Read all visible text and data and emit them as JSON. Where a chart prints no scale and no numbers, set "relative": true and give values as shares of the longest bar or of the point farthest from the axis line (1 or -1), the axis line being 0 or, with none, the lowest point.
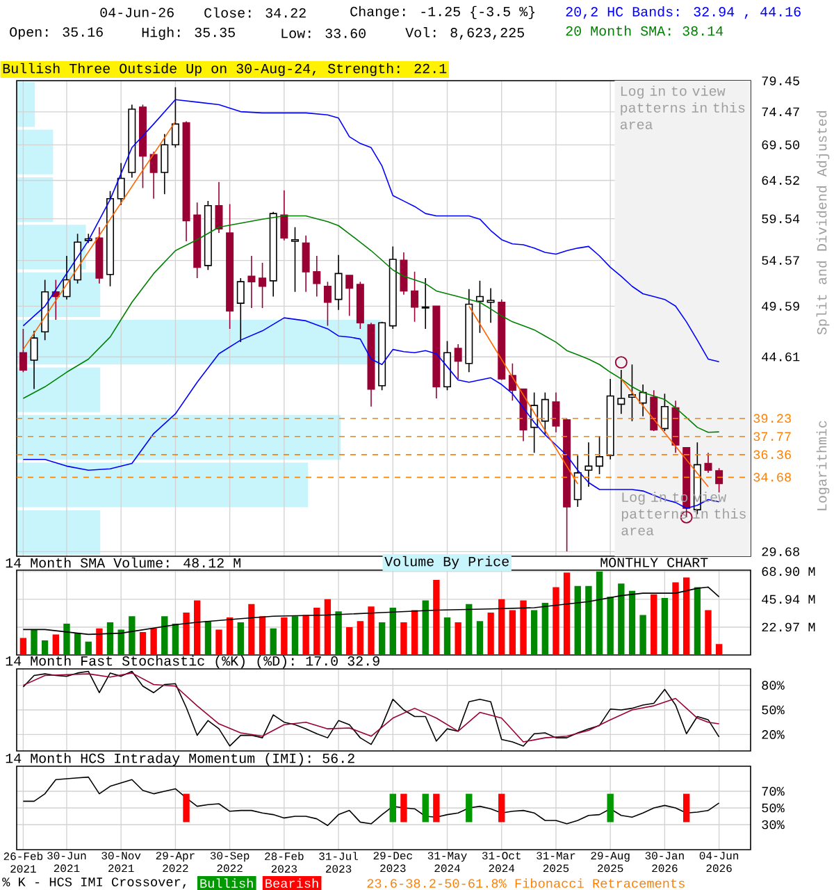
{
  "chart_data": [
    {
      "type": "candlestick",
      "title": "Bullish Three Outside Up on 30-Aug-24, Strength: 22.1",
      "ylabel": "Split and Dividend Adjusted",
      "log": true,
      "grid": true,
      "tick_labels": "y",
      "legend": "top right",
      "xlim": [
        "2021-01-13",
        "2026-08-28"
      ],
      "ylim": [
        29.4,
        79.5
      ],
      "xticks": [
        {
          "value": "2021-02",
          "label": null
        },
        {
          "value": "2021-06",
          "label": null
        },
        {
          "value": "2021-11",
          "label": null
        },
        {
          "value": "2022-04",
          "label": null
        },
        {
          "value": "2022-09",
          "label": null
        },
        {
          "value": "2023-02",
          "label": null
        },
        {
          "value": "2023-07",
          "label": null
        },
        {
          "value": "2023-12",
          "label": null
        },
        {
          "value": "2024-05",
          "label": null
        },
        {
          "value": "2024-10",
          "label": null
        },
        {
          "value": "2025-03",
          "label": null
        },
        {
          "value": "2025-08",
          "label": null
        },
        {
          "value": "2026-01",
          "label": null
        },
        {
          "value": "2026-06",
          "label": null
        }
      ],
      "yticks": [
        29.68,
        44.61,
        49.59,
        54.57,
        59.54,
        64.52,
        {
          "value": 69.5,
          "label": "69.50"
        },
        74.47,
        79.45
      ],
      "bands": [
        {
          "axis": "x",
          "from": "2025-08-13",
          "to": "2026-08-28",
          "label": "Log in to view patterns in this area",
          "color": "#f2f2f2"
        }
      ],
      "ref_lines": [
        {
          "axis": "y",
          "value": 39.23,
          "label": "39.23",
          "color": "#ff8000",
          "line_style": "dashed"
        },
        {
          "axis": "y",
          "value": 37.77,
          "label": "37.77",
          "color": "#ff8000",
          "line_style": "dashed"
        },
        {
          "axis": "y",
          "value": 36.36,
          "label": "36.36",
          "color": "#ff8000",
          "line_style": "dashed"
        },
        {
          "axis": "y",
          "value": 34.68,
          "label": "34.68",
          "color": "#ff8000",
          "line_style": "dashed"
        }
      ],
      "annotations": [
        "04-Jun-26",
        "Close: 34.22",
        "Change: -1.25 {-3.5 %}",
        "Open: 35.16",
        "High: 35.35",
        "Low: 33.60",
        "Vol: 8,623,225",
        "Log in to view patterns in this area",
        "Logarithmic",
        "23.6-38.2-50-61.8% Fibonacci Retracements",
        "Volume By Price"
      ],
      "series": [
        {
          "color": "#000000",
          "x": [
            "2021-03",
            "2021-04",
            "2021-06",
            "2021-07",
            "2021-08",
            "2021-10",
            "2021-11",
            "2021-12",
            "2022-03",
            "2022-04",
            "2022-07",
            "2022-10",
            "2023-01",
            "2023-03",
            "2023-07",
            "2023-11",
            "2023-12",
            "2024-03",
            "2024-05",
            "2024-07",
            "2024-08",
            "2024-09",
            "2025-01",
            "2025-02",
            "2025-05",
            "2025-06",
            "2025-07",
            "2025-08",
            "2025-09",
            "2025-10",
            "2025-11",
            "2026-01",
            "2026-04"
          ],
          "ohlc": [
            [
              44.3,
              47.1,
              41.7,
              46.4
            ],
            [
              47.0,
              52.4,
              46.2,
              51.1
            ],
            [
              50.6,
              55.1,
              50.3,
              52.4
            ],
            [
              52.4,
              57.7,
              52.0,
              56.7
            ],
            [
              56.9,
              57.7,
              56.6,
              57.1
            ],
            [
              53.0,
              63.1,
              51.7,
              62.1
            ],
            [
              62.1,
              66.9,
              61.3,
              64.8
            ],
            [
              65.6,
              75.6,
              64.9,
              74.9
            ],
            [
              65.6,
              71.1,
              62.7,
              69.5
            ],
            [
              69.5,
              78.4,
              69.1,
              72.6
            ],
            [
              54.0,
              61.8,
              53.5,
              61.2
            ],
            [
              49.9,
              52.6,
              46.0,
              52.2
            ],
            [
              52.3,
              60.4,
              50.6,
              60.2
            ],
            [
              56.8,
              58.5,
              51.1,
              57.0
            ],
            [
              50.3,
              55.2,
              49.2,
              53.1
            ],
            [
              42.0,
              48.0,
              41.6,
              47.9
            ],
            [
              47.6,
              56.2,
              47.3,
              54.7
            ],
            [
              49.4,
              52.6,
              47.3,
              49.5
            ],
            [
              41.9,
              46.1,
              41.6,
              45.0
            ],
            [
              44.0,
              51.4,
              43.2,
              49.8
            ],
            [
              50.1,
              52.3,
              46.9,
              50.6
            ],
            [
              50.0,
              51.5,
              47.9,
              50.2
            ],
            [
              38.5,
              41.4,
              36.5,
              40.3
            ],
            [
              39.0,
              41.4,
              37.9,
              40.8
            ],
            [
              33.1,
              36.3,
              32.6,
              35.0
            ],
            [
              35.2,
              37.3,
              34.0,
              35.5
            ],
            [
              35.5,
              37.8,
              34.9,
              36.2
            ],
            [
              36.3,
              42.6,
              36.0,
              41.1
            ],
            [
              40.4,
              43.4,
              39.6,
              40.9
            ],
            [
              41.0,
              43.9,
              39.0,
              41.2
            ],
            [
              40.5,
              42.1,
              39.4,
              41.4
            ],
            [
              38.4,
              41.3,
              38.2,
              40.2
            ],
            [
              32.4,
              37.3,
              32.1,
              35.6
            ]
          ]
        },
        {
          "color": "#990033",
          "x": [
            "2021-02",
            "2021-05",
            "2021-09",
            "2022-01",
            "2022-02",
            "2022-05",
            "2022-06",
            "2022-08",
            "2022-09",
            "2022-11",
            "2022-12",
            "2023-02",
            "2023-04",
            "2023-05",
            "2023-06",
            "2023-08",
            "2023-09",
            "2023-10",
            "2024-01",
            "2024-02",
            "2024-04",
            "2024-06",
            "2024-10",
            "2024-11",
            "2024-12",
            "2025-03",
            "2025-04",
            "2025-12",
            "2026-02",
            "2026-03",
            "2026-05",
            "2026-06"
          ],
          "ohlc": [
            [
              45.0,
              47.3,
              43.2,
              43.4
            ],
            [
              51.1,
              52.4,
              48.2,
              50.6
            ],
            [
              57.2,
              58.5,
              52.0,
              52.6
            ],
            [
              75.2,
              75.6,
              63.5,
              67.9
            ],
            [
              68.1,
              68.5,
              62.1,
              65.6
            ],
            [
              72.8,
              73.0,
              56.8,
              59.3
            ],
            [
              60.0,
              61.6,
              52.6,
              53.8
            ],
            [
              61.2,
              64.3,
              57.8,
              58.3
            ],
            [
              57.8,
              61.4,
              47.3,
              49.1
            ],
            [
              52.8,
              55.1,
              49.4,
              52.2
            ],
            [
              52.6,
              54.3,
              49.4,
              51.7
            ],
            [
              60.0,
              63.2,
              56.9,
              57.2
            ],
            [
              56.6,
              57.5,
              51.1,
              53.3
            ],
            [
              53.3,
              55.1,
              50.6,
              52.0
            ],
            [
              51.7,
              52.2,
              47.6,
              50.0
            ],
            [
              52.9,
              52.9,
              48.6,
              51.5
            ],
            [
              51.9,
              52.2,
              47.3,
              47.9
            ],
            [
              47.7,
              47.9,
              40.2,
              41.7
            ],
            [
              54.6,
              55.5,
              50.8,
              51.2
            ],
            [
              51.2,
              53.3,
              48.0,
              49.5
            ],
            [
              49.6,
              49.6,
              40.9,
              41.9
            ],
            [
              45.4,
              45.8,
              42.6,
              44.2
            ],
            [
              50.0,
              50.3,
              42.5,
              42.6
            ],
            [
              42.9,
              44.0,
              40.7,
              41.6
            ],
            [
              41.7,
              41.7,
              37.4,
              38.3
            ],
            [
              40.6,
              41.4,
              38.1,
              38.6
            ],
            [
              39.1,
              39.2,
              29.7,
              32.6
            ],
            [
              41.0,
              41.6,
              38.2,
              38.3
            ],
            [
              40.1,
              40.7,
              36.5,
              37.1
            ],
            [
              36.9,
              36.9,
              31.9,
              32.5
            ],
            [
              35.7,
              36.5,
              35.0,
              35.2
            ],
            [
              35.16,
              35.35,
              33.6,
              34.22
            ]
          ]
        },
        {
          "type": "line",
          "name": "20,2 HC Bands: 32.94 , 44.16",
          "color": "#0000ff",
          "x": [
            "2021-02",
            "2021-04",
            "2021-06",
            "2021-08",
            "2021-10",
            "2021-12",
            "2022-02",
            "2022-04",
            "2022-06",
            "2022-08",
            "2022-10",
            "2022-12",
            "2023-02",
            "2023-04",
            "2023-06",
            "2023-07",
            "2023-08",
            "2023-09",
            "2023-10",
            "2023-11",
            "2023-12",
            "2024-01",
            "2024-02",
            "2024-03",
            "2024-04",
            "2024-05",
            "2024-06",
            "2024-07",
            "2024-08",
            "2024-09",
            "2024-10",
            "2024-11",
            "2024-12",
            "2025-01",
            "2025-02",
            "2025-03",
            "2025-04",
            "2025-05",
            "2025-06",
            "2025-07",
            "2025-08",
            "2025-09",
            "2025-10",
            "2025-11",
            "2025-12",
            "2026-01",
            "2026-02",
            "2026-03",
            "2026-04",
            "2026-05",
            "2026-06"
          ],
          "values": [
            47.6,
            49.6,
            53.1,
            56.9,
            62.0,
            69.1,
            72.6,
            76.4,
            76.0,
            75.6,
            74.5,
            74.3,
            74.3,
            74.3,
            74.0,
            73.5,
            70.7,
            69.7,
            69.1,
            66.5,
            62.5,
            61.8,
            61.1,
            60.2,
            59.9,
            59.9,
            59.9,
            59.9,
            59.5,
            58.1,
            57.0,
            56.5,
            56.4,
            56.0,
            55.5,
            55.3,
            55.7,
            56.0,
            56.2,
            55.1,
            53.8,
            52.8,
            51.7,
            50.9,
            50.6,
            50.3,
            49.6,
            48.0,
            46.2,
            44.4,
            44.16
          ]
        },
        {
          "type": "line",
          "color": "#0000ff",
          "x": [
            "2021-02",
            "2021-04",
            "2021-06",
            "2021-08",
            "2021-10",
            "2021-12",
            "2022-02",
            "2022-04",
            "2022-06",
            "2022-08",
            "2022-10",
            "2022-12",
            "2023-02",
            "2023-04",
            "2023-06",
            "2023-07",
            "2023-08",
            "2023-09",
            "2023-10",
            "2023-11",
            "2023-12",
            "2024-01",
            "2024-02",
            "2024-03",
            "2024-04",
            "2024-05",
            "2024-06",
            "2024-07",
            "2024-08",
            "2024-09",
            "2024-10",
            "2024-11",
            "2024-12",
            "2025-01",
            "2025-02",
            "2025-03",
            "2025-04",
            "2025-05",
            "2025-06",
            "2025-07",
            "2025-08",
            "2025-09",
            "2025-10",
            "2025-11",
            "2025-12",
            "2026-01",
            "2026-02",
            "2026-03",
            "2026-04",
            "2026-05",
            "2026-06"
          ],
          "values": [
            36.0,
            36.0,
            35.5,
            35.2,
            35.3,
            35.7,
            38.0,
            39.6,
            42.3,
            44.9,
            46.2,
            47.1,
            48.4,
            48.1,
            47.3,
            46.6,
            46.5,
            46.3,
            44.4,
            43.9,
            45.3,
            45.1,
            45.0,
            45.2,
            44.9,
            43.7,
            42.5,
            42.3,
            42.5,
            42.7,
            42.1,
            41.3,
            40.1,
            38.9,
            37.9,
            37.1,
            36.3,
            35.2,
            34.3,
            33.8,
            33.8,
            33.8,
            33.8,
            33.7,
            33.4,
            33.1,
            32.9,
            32.5,
            32.7,
            33.1,
            32.94
          ]
        },
        {
          "type": "line",
          "name": "20 Month SMA: 38.14",
          "color": "#008000",
          "x": [
            "2021-02",
            "2021-04",
            "2021-06",
            "2021-08",
            "2021-10",
            "2021-12",
            "2022-02",
            "2022-04",
            "2022-06",
            "2022-08",
            "2022-10",
            "2022-12",
            "2023-02",
            "2023-04",
            "2023-06",
            "2023-07",
            "2023-08",
            "2023-09",
            "2023-10",
            "2023-11",
            "2023-12",
            "2024-01",
            "2024-02",
            "2024-03",
            "2024-04",
            "2024-05",
            "2024-06",
            "2024-07",
            "2024-08",
            "2024-09",
            "2024-10",
            "2024-11",
            "2024-12",
            "2025-01",
            "2025-02",
            "2025-03",
            "2025-04",
            "2025-05",
            "2025-06",
            "2025-07",
            "2025-08",
            "2025-09",
            "2025-10",
            "2025-11",
            "2025-12",
            "2026-01",
            "2026-02",
            "2026-03",
            "2026-04",
            "2026-05",
            "2026-06"
          ],
          "values": [
            40.9,
            41.9,
            43.2,
            44.4,
            46.5,
            50.0,
            53.1,
            55.7,
            57.0,
            58.5,
            59.0,
            59.5,
            59.9,
            59.9,
            59.2,
            58.7,
            57.7,
            56.7,
            55.7,
            54.6,
            53.5,
            52.8,
            52.4,
            52.0,
            51.2,
            50.9,
            50.6,
            50.3,
            50.0,
            49.3,
            48.6,
            48.0,
            47.6,
            47.2,
            46.6,
            46.0,
            45.2,
            44.8,
            44.4,
            43.9,
            43.2,
            42.6,
            41.9,
            41.4,
            41.1,
            40.8,
            40.1,
            39.3,
            38.5,
            38.1,
            38.14
          ]
        },
        {
          "type": "line",
          "color": "#ff6600",
          "x": [
            "2021-02",
            "2022-04"
          ],
          "values": [
            45.3,
            73.0
          ]
        },
        {
          "type": "line",
          "color": "#ff6600",
          "x": [
            "2024-07",
            "2025-05"
          ],
          "values": [
            49.6,
            34.2
          ]
        },
        {
          "type": "line",
          "color": "#ff6600",
          "x": [
            "2025-09",
            "2026-05"
          ],
          "values": [
            42.6,
            34.0
          ]
        },
        {
          "type": "scatter",
          "color": "#990033",
          "marker": "circle",
          "x": [
            "2025-09",
            "2026-03"
          ],
          "values": [
            44.1,
            31.9
          ]
        }
      ]
    },
    {
      "type": "bar",
      "orientation": "horizontal",
      "relative": true,
      "tick_labels": false,
      "color": "#c8f4fc",
      "categories": [
        null,
        null,
        null,
        null,
        null,
        null,
        null,
        null,
        null,
        null
      ],
      "values": [
        0.05,
        0.1,
        0.1,
        0.19,
        0.23,
        1.0,
        0.23,
        0.89,
        0.8,
        0.23
      ]
    },
    {
      "type": "bar",
      "title": "14 Month SMA Volume: 48.12 M",
      "grid": true,
      "tick_labels": "y",
      "annotations": [
        "MONTHLY CHART"
      ],
      "x": [
        "2021-02",
        "2021-03",
        "2021-04",
        "2021-05",
        "2021-06",
        "2021-07",
        "2021-08",
        "2021-09",
        "2021-10",
        "2021-11",
        "2021-12",
        "2022-01",
        "2022-02",
        "2022-03",
        "2022-04",
        "2022-05",
        "2022-06",
        "2022-07",
        "2022-08",
        "2022-09",
        "2022-10",
        "2022-11",
        "2022-12",
        "2023-01",
        "2023-02",
        "2023-03",
        "2023-04",
        "2023-05",
        "2023-06",
        "2023-07",
        "2023-08",
        "2023-09",
        "2023-10",
        "2023-11",
        "2023-12",
        "2024-01",
        "2024-02",
        "2024-03",
        "2024-04",
        "2024-05",
        "2024-06",
        "2024-07",
        "2024-08",
        "2024-09",
        "2024-10",
        "2024-11",
        "2024-12",
        "2025-01",
        "2025-02",
        "2025-03",
        "2025-04",
        "2025-05",
        "2025-06",
        "2025-07",
        "2025-08",
        "2025-09",
        "2025-10",
        "2025-11",
        "2025-12",
        "2026-01",
        "2026-02",
        "2026-03",
        "2026-04",
        "2026-05",
        "2026-06"
      ],
      "xlim": [
        "2021-01-13",
        "2026-08-28"
      ],
      "ylim": [
        0,
        70
      ],
      "xticks": [
        {
          "value": "2021-02",
          "label": null
        },
        {
          "value": "2021-06",
          "label": null
        },
        {
          "value": "2021-11",
          "label": null
        },
        {
          "value": "2022-04",
          "label": null
        },
        {
          "value": "2022-09",
          "label": null
        },
        {
          "value": "2023-02",
          "label": null
        },
        {
          "value": "2023-07",
          "label": null
        },
        {
          "value": "2023-12",
          "label": null
        },
        {
          "value": "2024-05",
          "label": null
        },
        {
          "value": "2024-10",
          "label": null
        },
        {
          "value": "2025-03",
          "label": null
        },
        {
          "value": "2025-08",
          "label": null
        },
        {
          "value": "2026-01",
          "label": null
        },
        {
          "value": "2026-06",
          "label": null
        }
      ],
      "yticks": [
        {
          "value": 22.97,
          "label": "22.97 M"
        },
        {
          "value": 45.94,
          "label": "45.94 M"
        },
        {
          "value": 68.9,
          "label": "68.90 M"
        }
      ],
      "series": [
        {
          "colors": [
            "#ff0000",
            "#008800",
            "#008800",
            "#ff0000",
            "#008800",
            "#008800",
            "#008800",
            "#ff0000",
            "#008800",
            "#008800",
            "#008800",
            "#ff0000",
            "#ff0000",
            "#008800",
            "#008800",
            "#ff0000",
            "#ff0000",
            "#008800",
            "#ff0000",
            "#ff0000",
            "#008800",
            "#ff0000",
            "#ff0000",
            "#008800",
            "#ff0000",
            "#008800",
            "#ff0000",
            "#ff0000",
            "#ff0000",
            "#008800",
            "#ff0000",
            "#ff0000",
            "#ff0000",
            "#008800",
            "#008800",
            "#ff0000",
            "#ff0000",
            "#008800",
            "#ff0000",
            "#008800",
            "#ff0000",
            "#008800",
            "#008800",
            "#ff0000",
            "#ff0000",
            "#ff0000",
            "#ff0000",
            "#008800",
            "#008800",
            "#ff0000",
            "#ff0000",
            "#008800",
            "#008800",
            "#008800",
            "#008800",
            "#008800",
            "#008800",
            "#008800",
            "#ff0000",
            "#008800",
            "#ff0000",
            "#ff0000",
            "#008800",
            "#ff0000",
            "#ff0000"
          ],
          "values": [
            14,
            21,
            12,
            17,
            26,
            18,
            11,
            22,
            27,
            21,
            32,
            19,
            22,
            32,
            26,
            35,
            45,
            28,
            21,
            31,
            27,
            42,
            32,
            22,
            31,
            32,
            33,
            39,
            46,
            36,
            23,
            28,
            40,
            27,
            39,
            27,
            37,
            45,
            62,
            31,
            27,
            42,
            28,
            35,
            46,
            37,
            45,
            37,
            43,
            56,
            68,
            57,
            57,
            69,
            48,
            59,
            53,
            33,
            50,
            47,
            60,
            64,
            56,
            37,
            9
          ]
        },
        {
          "type": "line",
          "color": "#000000",
          "x": [
            "2021-02",
            "2021-04",
            "2021-08",
            "2021-11",
            "2022-04",
            "2022-06",
            "2022-10",
            "2023-01",
            "2023-06",
            "2023-11",
            "2024-04",
            "2024-09",
            "2025-01",
            "2025-04",
            "2025-06",
            "2025-09",
            "2025-11",
            "2026-02",
            "2026-04",
            "2026-05",
            "2026-06"
          ],
          "values": [
            21,
            21,
            17,
            18,
            25,
            27,
            30,
            32,
            33,
            35,
            37,
            38,
            39,
            42,
            44,
            49,
            51,
            51,
            55,
            56,
            48
          ]
        }
      ]
    },
    {
      "type": "line",
      "title": "14 Month Fast Stochastic (%K) (%D): 17.0 32.9",
      "grid": true,
      "tick_labels": "y",
      "x": [
        "2021-02",
        "2021-03",
        "2021-04",
        "2021-05",
        "2021-06",
        "2021-07",
        "2021-08",
        "2021-09",
        "2021-10",
        "2021-11",
        "2021-12",
        "2022-01",
        "2022-02",
        "2022-03",
        "2022-04",
        "2022-05",
        "2022-06",
        "2022-07",
        "2022-08",
        "2022-09",
        "2022-10",
        "2022-11",
        "2022-12",
        "2023-01",
        "2023-02",
        "2023-03",
        "2023-04",
        "2023-05",
        "2023-06",
        "2023-07",
        "2023-08",
        "2023-09",
        "2023-10",
        "2023-11",
        "2023-12",
        "2024-01",
        "2024-02",
        "2024-03",
        "2024-04",
        "2024-05",
        "2024-06",
        "2024-07",
        "2024-08",
        "2024-09",
        "2024-10",
        "2024-11",
        "2024-12",
        "2025-01",
        "2025-02",
        "2025-03",
        "2025-04",
        "2025-05",
        "2025-06",
        "2025-07",
        "2025-08",
        "2025-09",
        "2025-10",
        "2025-11",
        "2025-12",
        "2026-01",
        "2026-02",
        "2026-03",
        "2026-04",
        "2026-05",
        "2026-06"
      ],
      "xlim": [
        "2021-01-13",
        "2026-08-28"
      ],
      "ylim": [
        0,
        100
      ],
      "xticks": [
        {
          "value": "2021-02",
          "label": null
        },
        {
          "value": "2021-06",
          "label": null
        },
        {
          "value": "2021-11",
          "label": null
        },
        {
          "value": "2022-04",
          "label": null
        },
        {
          "value": "2022-09",
          "label": null
        },
        {
          "value": "2023-02",
          "label": null
        },
        {
          "value": "2023-07",
          "label": null
        },
        {
          "value": "2023-12",
          "label": null
        },
        {
          "value": "2024-05",
          "label": null
        },
        {
          "value": "2024-10",
          "label": null
        },
        {
          "value": "2025-03",
          "label": null
        },
        {
          "value": "2025-08",
          "label": null
        },
        {
          "value": "2026-01",
          "label": null
        },
        {
          "value": "2026-06",
          "label": null
        }
      ],
      "yticks": [
        {
          "value": 20,
          "label": "20%"
        },
        {
          "value": 50,
          "label": "50%"
        },
        {
          "value": 80,
          "label": "80%"
        }
      ],
      "series": [
        {
          "color": "#000000",
          "values": [
            78,
            92,
            94,
            92,
            91,
            95,
            97,
            71,
            95,
            91,
            97,
            79,
            71,
            81,
            82,
            53,
            19,
            37,
            27,
            6,
            19,
            19,
            16,
            44,
            35,
            32,
            27,
            21,
            16,
            37,
            32,
            16,
            8,
            31,
            63,
            50,
            42,
            42,
            12,
            27,
            24,
            60,
            63,
            60,
            14,
            11,
            6,
            21,
            22,
            16,
            16,
            22,
            27,
            31,
            51,
            50,
            52,
            56,
            58,
            75,
            56,
            21,
            42,
            38,
            17
          ]
        },
        {
          "color": "#990033",
          "x": [
            "2021-02",
            "2021-04",
            "2021-06",
            "2021-08",
            "2021-10",
            "2021-12",
            "2022-02",
            "2022-04",
            "2022-06",
            "2022-08",
            "2022-10",
            "2022-12",
            "2023-02",
            "2023-04",
            "2023-06",
            "2023-08",
            "2023-10",
            "2023-12",
            "2024-02",
            "2024-04",
            "2024-06",
            "2024-08",
            "2024-10",
            "2024-12",
            "2025-02",
            "2025-04",
            "2025-06",
            "2025-08",
            "2025-10",
            "2025-12",
            "2026-02",
            "2026-04",
            "2026-05",
            "2026-06"
          ],
          "values": [
            80,
            92,
            93,
            94,
            90,
            95,
            81,
            79,
            55,
            33,
            22,
            18,
            32,
            35,
            27,
            28,
            18,
            40,
            52,
            40,
            24,
            47,
            40,
            11,
            16,
            18,
            25,
            38,
            50,
            55,
            64,
            40,
            35,
            33
          ]
        }
      ]
    },
    {
      "type": "line",
      "title": "14 Month HCS Intraday Momentum (IMI): 56.2",
      "grid": true,
      "legend": "bottom",
      "legend_title": "% K - HCS IMI Crossover,",
      "x": [
        "2021-02",
        "2021-03",
        "2021-04",
        "2021-05",
        "2021-06",
        "2021-07",
        "2021-08",
        "2021-09",
        "2021-10",
        "2021-11",
        "2021-12",
        "2022-01",
        "2022-02",
        "2022-03",
        "2022-04",
        "2022-05",
        "2022-06",
        "2022-07",
        "2022-08",
        "2022-09",
        "2022-10",
        "2022-11",
        "2022-12",
        "2023-01",
        "2023-02",
        "2023-03",
        "2023-04",
        "2023-05",
        "2023-06",
        "2023-07",
        "2023-08",
        "2023-09",
        "2023-10",
        "2023-11",
        "2023-12",
        "2024-01",
        "2024-02",
        "2024-03",
        "2024-04",
        "2024-05",
        "2024-06",
        "2024-07",
        "2024-08",
        "2024-09",
        "2024-10",
        "2024-11",
        "2024-12",
        "2025-01",
        "2025-02",
        "2025-03",
        "2025-04",
        "2025-05",
        "2025-06",
        "2025-07",
        "2025-08",
        "2025-09",
        "2025-10",
        "2025-11",
        "2025-12",
        "2026-01",
        "2026-02",
        "2026-03",
        "2026-04",
        "2026-05",
        "2026-06"
      ],
      "xlim": [
        "2021-01-13",
        "2026-08-28"
      ],
      "ylim": [
        0,
        100
      ],
      "xticks": [
        {
          "value": "2021-02",
          "label": "26-Feb 2021"
        },
        {
          "value": "2021-06",
          "label": "30-Jun 2021"
        },
        {
          "value": "2021-11",
          "label": "30-Nov 2021"
        },
        {
          "value": "2022-04",
          "label": "29-Apr 2022"
        },
        {
          "value": "2022-09",
          "label": "30-Sep 2022"
        },
        {
          "value": "2023-02",
          "label": "28-Feb 2023"
        },
        {
          "value": "2023-07",
          "label": "31-Jul 2023"
        },
        {
          "value": "2023-12",
          "label": "29-Dec 2023"
        },
        {
          "value": "2024-05",
          "label": "31-May 2024"
        },
        {
          "value": "2024-10",
          "label": "31-Oct 2024"
        },
        {
          "value": "2025-03",
          "label": "31-Mar 2025"
        },
        {
          "value": "2025-08",
          "label": "29-Aug 2025"
        },
        {
          "value": "2026-01",
          "label": "30-Jan 2026"
        },
        {
          "value": "2026-06",
          "label": "04-Jun 2026"
        }
      ],
      "yticks": [
        {
          "value": 30,
          "label": "30%"
        },
        {
          "value": 50,
          "label": "50%"
        },
        {
          "value": 70,
          "label": "70%"
        }
      ],
      "series": [
        {
          "color": "#000000",
          "values": [
            58,
            58,
            67,
            84,
            85,
            86,
            87,
            67,
            76,
            80,
            84,
            71,
            67,
            70,
            73,
            62,
            52,
            54,
            55,
            46,
            47,
            47,
            44,
            42,
            38,
            40,
            40,
            37,
            29,
            42,
            47,
            33,
            31,
            42,
            52,
            50,
            49,
            40,
            39,
            42,
            44,
            50,
            52,
            49,
            44,
            46,
            47,
            44,
            35,
            35,
            31,
            35,
            41,
            42,
            49,
            41,
            39,
            44,
            50,
            53,
            50,
            44,
            45,
            47,
            56
          ]
        },
        {
          "type": "bar",
          "name": "Bullish",
          "color": "#009900",
          "x": [
            "2023-12",
            "2024-03",
            "2024-07",
            "2025-08"
          ],
          "base": [
            33,
            33,
            33,
            33
          ],
          "values": [
            34,
            34,
            34,
            34
          ]
        },
        {
          "type": "bar",
          "name": "Bearish",
          "color": "#ff0000",
          "x": [
            "2022-05",
            "2024-01",
            "2024-04",
            "2024-10",
            "2026-03"
          ],
          "base": [
            33,
            33,
            33,
            33,
            33
          ],
          "values": [
            34,
            34,
            34,
            34,
            34
          ]
        }
      ]
    }
  ]
}
